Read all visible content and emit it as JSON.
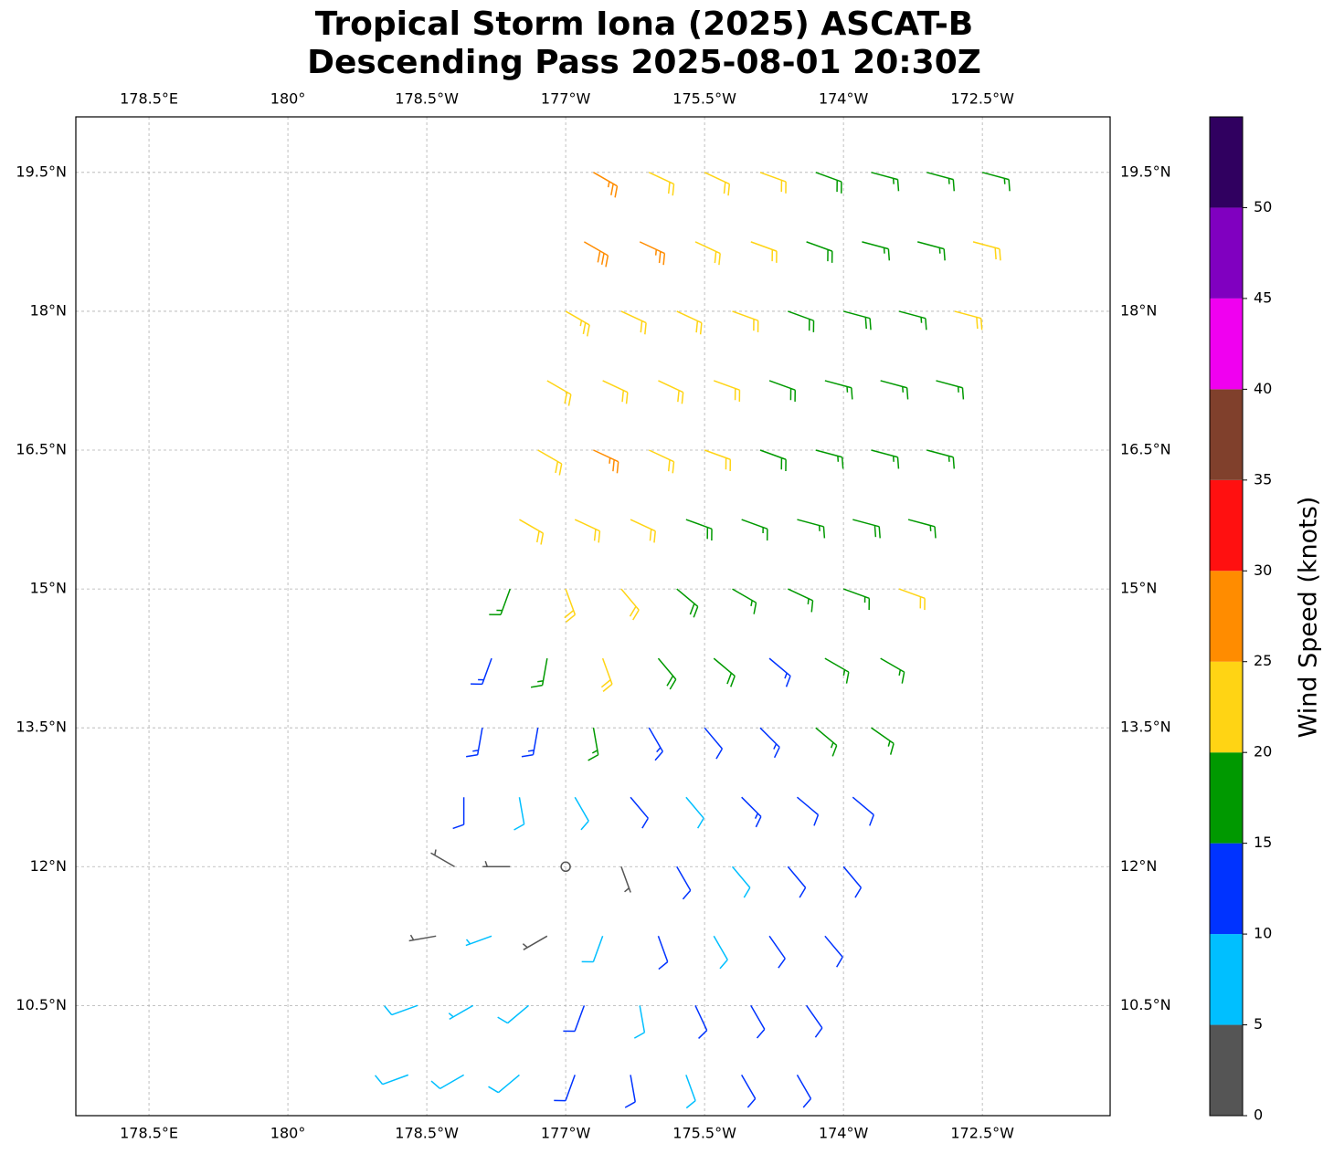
{
  "chart_data": {
    "type": "barbs",
    "title": [
      "Tropical Storm Iona (2025) ASCAT-B",
      "Descending Pass 2025-08-01 20:30Z"
    ],
    "xlim": [
      177.71,
      188.88
    ],
    "ylim": [
      9.31,
      20.1
    ],
    "xticks": [
      {
        "value": 178.5,
        "label": "178.5°E"
      },
      {
        "value": 180,
        "label": "180°"
      },
      {
        "value": 181.5,
        "label": "178.5°W"
      },
      {
        "value": 183,
        "label": "177°W"
      },
      {
        "value": 184.5,
        "label": "175.5°W"
      },
      {
        "value": 186,
        "label": "174°W"
      },
      {
        "value": 187.5,
        "label": "172.5°W"
      }
    ],
    "yticks": [
      {
        "value": 10.5,
        "label": "10.5°N"
      },
      {
        "value": 12,
        "label": "12°N"
      },
      {
        "value": 13.5,
        "label": "13.5°N"
      },
      {
        "value": 15,
        "label": "15°N"
      },
      {
        "value": 16.5,
        "label": "16.5°N"
      },
      {
        "value": 18,
        "label": "18°N"
      },
      {
        "value": 19.5,
        "label": "19.5°N"
      }
    ],
    "grid": true,
    "colorbar": {
      "label": "Wind Speed (knots)",
      "bounds": [
        0,
        5,
        10,
        15,
        20,
        25,
        30,
        35,
        40,
        45,
        50,
        55
      ],
      "colors": [
        "#555555",
        "#00bfff",
        "#0033ff",
        "#009900",
        "#ffd414",
        "#ff8c00",
        "#ff1010",
        "#80402c",
        "#f000f0",
        "#8000c0",
        "#300060"
      ],
      "ticks": [
        0,
        5,
        10,
        15,
        20,
        25,
        30,
        35,
        40,
        45,
        50
      ]
    },
    "barbs": [
      {
        "lat": 19.5,
        "lon": [
          183.3,
          183.9,
          184.5,
          185.1,
          185.7,
          186.3,
          186.9,
          187.5
        ],
        "speed": [
          27,
          22,
          22,
          21,
          18,
          17,
          17,
          16
        ],
        "direction": [
          120,
          115,
          115,
          110,
          110,
          105,
          105,
          105
        ]
      },
      {
        "lat": 18.75,
        "lon": [
          183.2,
          183.8,
          184.4,
          185.0,
          185.6,
          186.2,
          186.8,
          187.4
        ],
        "speed": [
          28,
          27,
          22,
          21,
          18,
          17,
          17,
          22
        ],
        "direction": [
          120,
          115,
          115,
          110,
          110,
          105,
          105,
          105
        ]
      },
      {
        "lat": 18.0,
        "lon": [
          183.0,
          183.6,
          184.2,
          184.8,
          185.4,
          186.0,
          186.6,
          187.2
        ],
        "speed": [
          23,
          22,
          22,
          21,
          19,
          18,
          17,
          22
        ],
        "direction": [
          120,
          115,
          115,
          110,
          110,
          105,
          105,
          105
        ]
      },
      {
        "lat": 17.25,
        "lon": [
          182.8,
          183.4,
          184.0,
          184.6,
          185.2,
          185.8,
          186.4,
          187.0
        ],
        "speed": [
          22,
          22,
          21,
          21,
          18,
          17,
          17,
          17
        ],
        "direction": [
          120,
          115,
          115,
          110,
          110,
          105,
          105,
          105
        ]
      },
      {
        "lat": 16.5,
        "lon": [
          182.7,
          183.3,
          183.9,
          184.5,
          185.1,
          185.7,
          186.3,
          186.9
        ],
        "speed": [
          22,
          27,
          21,
          21,
          19,
          17,
          17,
          17
        ],
        "direction": [
          120,
          115,
          115,
          110,
          110,
          105,
          105,
          105
        ]
      },
      {
        "lat": 15.75,
        "lon": [
          182.5,
          183.1,
          183.7,
          184.3,
          184.9,
          185.5,
          186.1,
          186.7
        ],
        "speed": [
          22,
          21,
          22,
          19,
          17,
          17,
          18,
          17
        ],
        "direction": [
          120,
          115,
          115,
          110,
          110,
          105,
          105,
          105
        ]
      },
      {
        "lat": 15.0,
        "lon": [
          182.4,
          183.0,
          183.6,
          184.2,
          184.8,
          185.4,
          186.0,
          186.6
        ],
        "speed": [
          17,
          22,
          21,
          18,
          17,
          16,
          17,
          22
        ],
        "direction": [
          200,
          160,
          140,
          130,
          120,
          115,
          110,
          110
        ]
      },
      {
        "lat": 14.25,
        "lon": [
          182.2,
          182.8,
          183.4,
          184.0,
          184.6,
          185.2,
          185.8,
          186.4
        ],
        "speed": [
          14,
          17,
          22,
          18,
          18,
          13,
          17,
          17
        ],
        "direction": [
          200,
          190,
          160,
          140,
          130,
          130,
          120,
          120
        ]
      },
      {
        "lat": 13.5,
        "lon": [
          182.1,
          182.7,
          183.3,
          183.9,
          184.5,
          185.1,
          185.7,
          186.3
        ],
        "speed": [
          13,
          14,
          17,
          13,
          12,
          13,
          17,
          17
        ],
        "direction": [
          190,
          190,
          170,
          150,
          140,
          135,
          130,
          125
        ]
      },
      {
        "lat": 12.75,
        "lon": [
          181.9,
          182.5,
          183.1,
          183.7,
          184.3,
          184.9,
          185.5,
          186.1
        ],
        "speed": [
          12,
          8,
          9,
          12,
          8,
          13,
          12,
          12
        ],
        "direction": [
          180,
          170,
          150,
          140,
          140,
          135,
          130,
          130
        ]
      },
      {
        "lat": 12.0,
        "lon": [
          181.8,
          182.4,
          183.0,
          183.6,
          184.2,
          184.8,
          185.4,
          186.0
        ],
        "speed": [
          3,
          4,
          0,
          4,
          12,
          8,
          12,
          12
        ],
        "direction": [
          300,
          270,
          0,
          160,
          150,
          140,
          140,
          140
        ]
      },
      {
        "lat": 11.25,
        "lon": [
          181.6,
          182.2,
          182.8,
          183.4,
          184.0,
          184.6,
          185.2,
          185.8
        ],
        "speed": [
          4,
          7,
          4,
          9,
          12,
          8,
          12,
          12
        ],
        "direction": [
          260,
          250,
          240,
          200,
          160,
          150,
          145,
          140
        ]
      },
      {
        "lat": 10.5,
        "lon": [
          181.4,
          182.0,
          182.6,
          183.2,
          183.8,
          184.4,
          185.0,
          185.6
        ],
        "speed": [
          8,
          7,
          9,
          12,
          8,
          12,
          12,
          12
        ],
        "direction": [
          250,
          240,
          230,
          200,
          170,
          155,
          150,
          145
        ]
      },
      {
        "lat": 9.75,
        "lon": [
          181.3,
          181.9,
          182.5,
          183.1,
          183.7,
          184.3,
          184.9,
          185.5
        ],
        "speed": [
          8,
          8,
          8,
          12,
          12,
          9,
          12,
          12
        ],
        "direction": [
          250,
          240,
          230,
          200,
          170,
          160,
          150,
          150
        ]
      }
    ]
  }
}
